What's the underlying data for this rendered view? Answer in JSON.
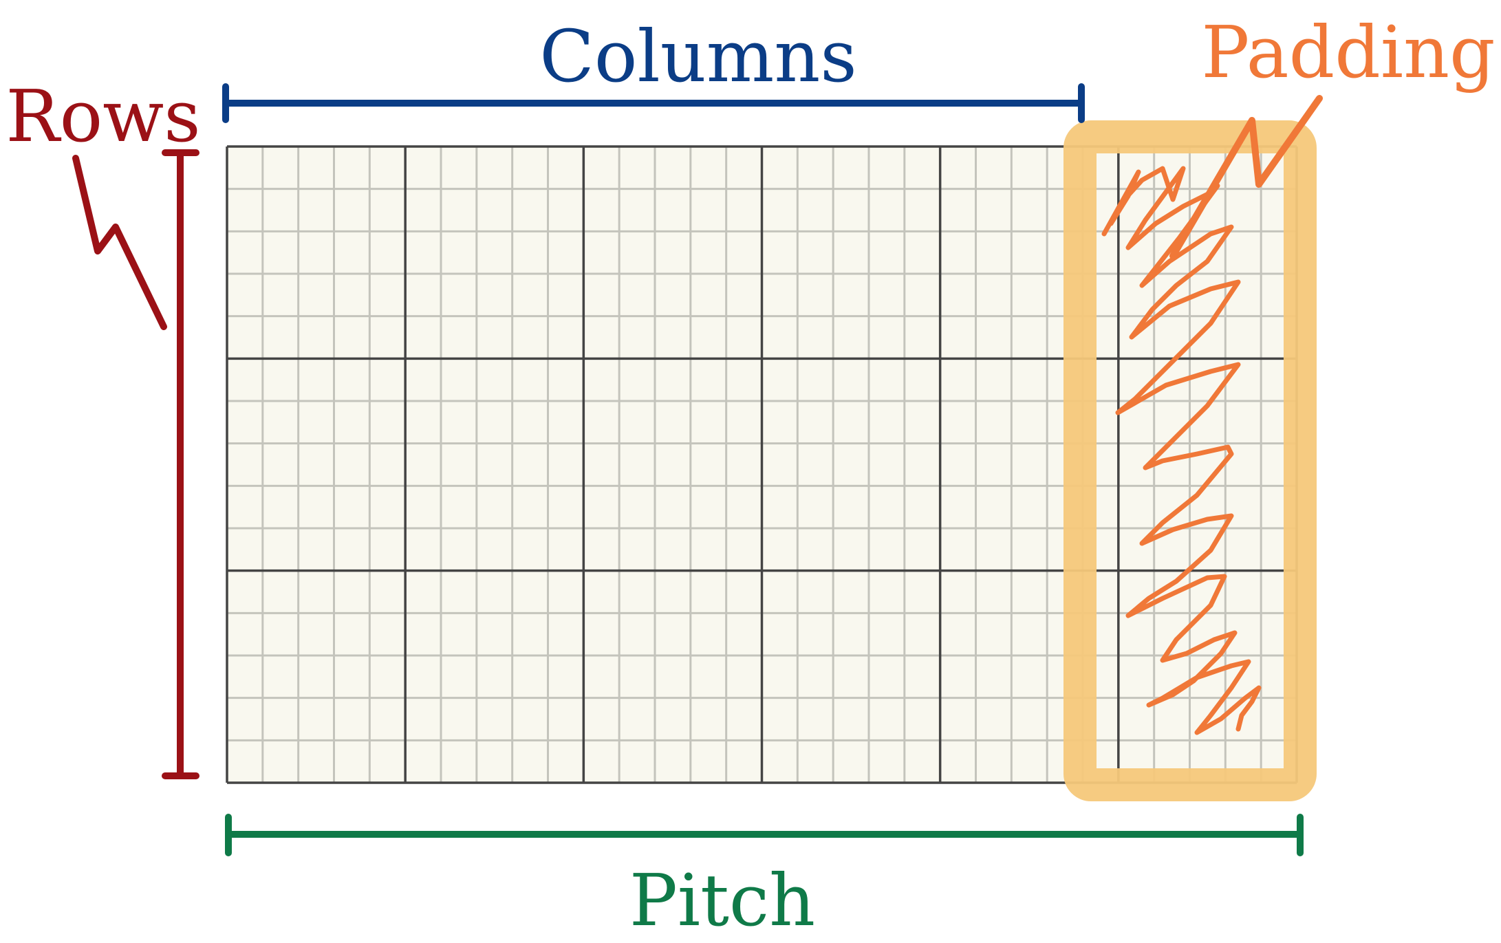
{
  "labels": {
    "columns": "Columns",
    "rows": "Rows",
    "padding": "Padding",
    "pitch": "Pitch"
  },
  "colors": {
    "columns": "#0b3d86",
    "rows": "#9b1116",
    "padding": "#f07838",
    "padding_highlight": "#f5c87a",
    "pitch": "#0f7a48",
    "grid_background": "#f9f8ef",
    "grid_major": "#444444",
    "grid_minor": "#b8b8b0"
  },
  "grid": {
    "major_columns": 5,
    "major_rows": 3,
    "minor_per_major": 5,
    "padding_columns": 1
  }
}
